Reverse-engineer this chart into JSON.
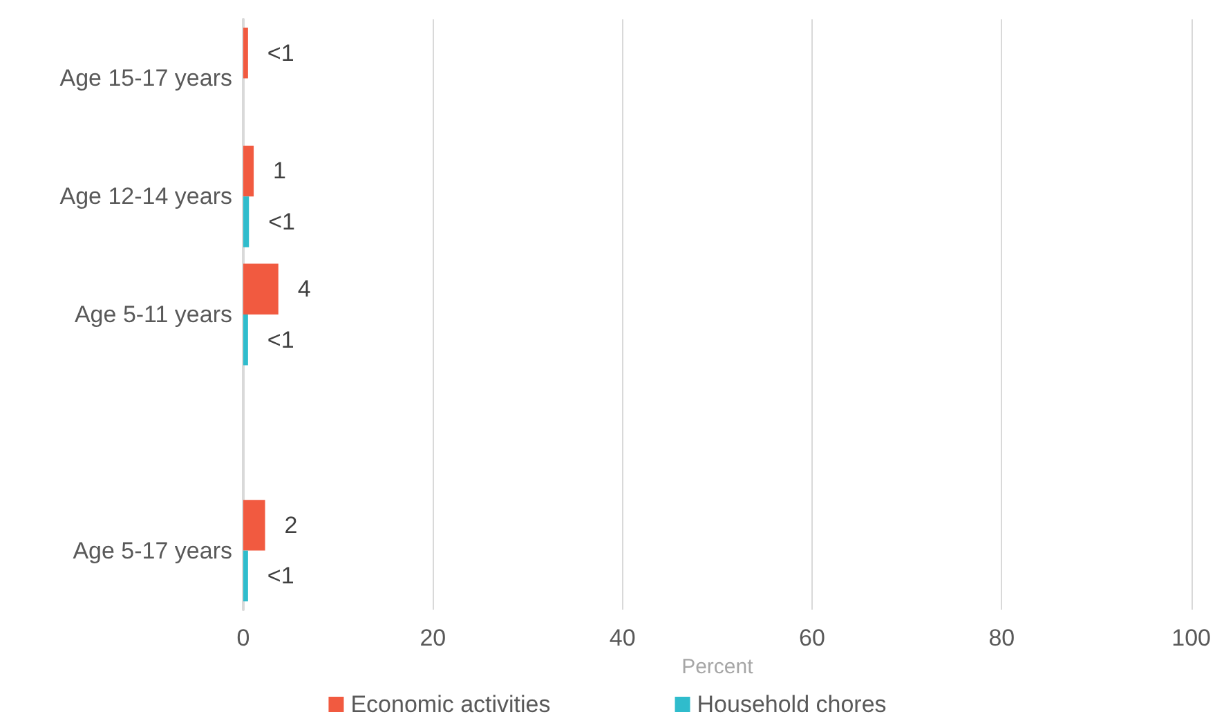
{
  "chart_data": {
    "type": "bar",
    "orientation": "horizontal",
    "xlabel": "Percent",
    "categories": [
      "Age 15-17 years",
      "Age 12-14 years",
      "Age 5-11 years",
      null,
      "Age 5-17 years"
    ],
    "series": [
      {
        "name": "Economic activities",
        "color": "#f15a40",
        "values": [
          0.5,
          1.1,
          3.7,
          null,
          2.3
        ],
        "value_labels": [
          "<1",
          "1",
          "4",
          null,
          "2"
        ]
      },
      {
        "name": "Household chores",
        "color": "#2fbccc",
        "values": [
          null,
          0.6,
          0.5,
          null,
          0.5
        ],
        "value_labels": [
          null,
          "<1",
          "<1",
          null,
          "<1"
        ]
      }
    ],
    "xlim": [
      0,
      100
    ],
    "xticks": [
      0,
      20,
      40,
      60,
      80,
      100
    ],
    "grid": "x",
    "legend": "bottom"
  }
}
